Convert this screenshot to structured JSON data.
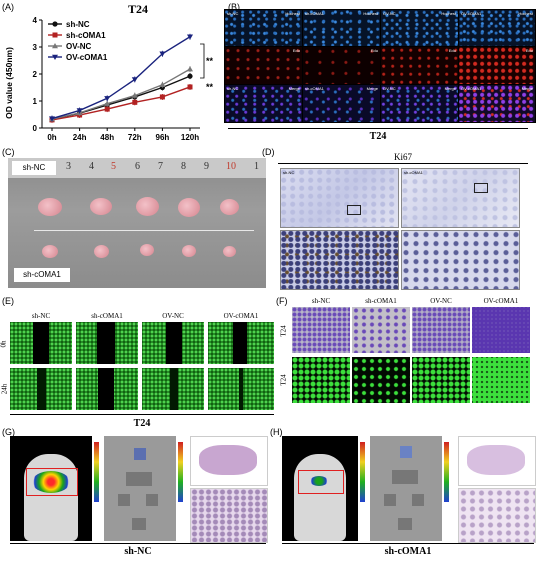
{
  "panels": {
    "A": "(A)",
    "B": "(B)",
    "C": "(C)",
    "D": "(D)",
    "E": "(E)",
    "F": "(F)",
    "G": "(G)",
    "H": "(H)"
  },
  "chart_data": {
    "type": "line",
    "title": "T24",
    "xlabel": "",
    "ylabel": "OD value (450nm)",
    "categories": [
      "0h",
      "24h",
      "48h",
      "72h",
      "96h",
      "120h"
    ],
    "ylim": [
      0,
      4
    ],
    "yticks": [
      "0",
      "1",
      "2",
      "3",
      "4"
    ],
    "series": [
      {
        "name": "sh-NC",
        "color": "#111111",
        "marker": "circle",
        "values": [
          0.32,
          0.55,
          0.85,
          1.15,
          1.5,
          1.92
        ]
      },
      {
        "name": "sh-cOMA1",
        "color": "#b22222",
        "marker": "square",
        "values": [
          0.3,
          0.48,
          0.7,
          0.95,
          1.15,
          1.52
        ]
      },
      {
        "name": "OV-NC",
        "color": "#777777",
        "marker": "triangle",
        "values": [
          0.33,
          0.56,
          0.9,
          1.2,
          1.6,
          2.18
        ]
      },
      {
        "name": "OV-cOMA1",
        "color": "#1a237e",
        "marker": "triangle-down",
        "values": [
          0.35,
          0.65,
          1.1,
          1.8,
          2.75,
          3.38
        ]
      }
    ],
    "significance": [
      "**",
      "**"
    ]
  },
  "panel_b": {
    "columns": [
      "sh-NC",
      "sh-cOMA1",
      "OV-NC",
      "OV-cOMA1"
    ],
    "stains": [
      "Hochest",
      "Edu",
      "Merge"
    ],
    "caption": "T24"
  },
  "panel_c": {
    "label_top": "sh-NC",
    "label_bottom": "sh-cOMA1",
    "ruler": [
      "3",
      "4",
      "5",
      "6",
      "7",
      "8",
      "9",
      "10",
      "1"
    ]
  },
  "panel_d": {
    "title": "Ki67",
    "left_tag": "sh-NC",
    "right_tag": "sh-cOMA1"
  },
  "panel_e": {
    "columns": [
      "sh-NC",
      "sh-cOMA1",
      "OV-NC",
      "OV-cOMA1"
    ],
    "rows": [
      "0h",
      "24h"
    ],
    "caption": "T24"
  },
  "panel_f": {
    "columns": [
      "sh-NC",
      "sh-cOMA1",
      "OV-NC",
      "OV-cOMA1"
    ],
    "rows": [
      "T24",
      "T24"
    ]
  },
  "panel_g": {
    "caption": "sh-NC"
  },
  "panel_h": {
    "caption": "sh-cOMA1"
  }
}
